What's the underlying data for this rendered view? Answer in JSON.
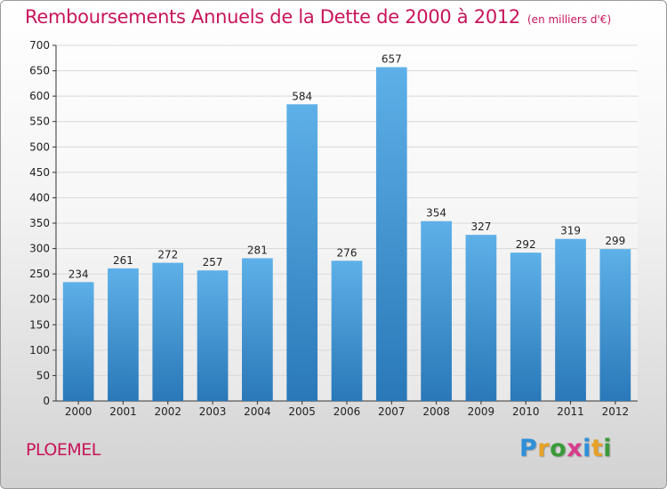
{
  "chart_data": {
    "type": "bar",
    "title": "Remboursements Annuels de la Dette de 2000 à 2012",
    "subtitle": "(en milliers d'€)",
    "categories": [
      "2000",
      "2001",
      "2002",
      "2003",
      "2004",
      "2005",
      "2006",
      "2007",
      "2008",
      "2009",
      "2010",
      "2011",
      "2012"
    ],
    "values": [
      234,
      261,
      272,
      257,
      281,
      584,
      276,
      657,
      354,
      327,
      292,
      319,
      299
    ],
    "ylim": [
      0,
      700
    ],
    "yticks": [
      0,
      50,
      100,
      150,
      200,
      250,
      300,
      350,
      400,
      450,
      500,
      550,
      600,
      650,
      700
    ],
    "xlabel": "",
    "ylabel": "",
    "grid": true,
    "colors": {
      "bar_top": "#5eb0e8",
      "bar_bottom": "#2a78b8",
      "grid": "#d8d8d8",
      "title": "#c8155a"
    }
  },
  "footer": {
    "city": "PLOEMEL",
    "logo": {
      "text": "Proxiti",
      "letters": [
        {
          "ch": "P",
          "color": "#2f8fd8"
        },
        {
          "ch": "r",
          "color": "#e6a126"
        },
        {
          "ch": "o",
          "color": "#3a9a3a"
        },
        {
          "ch": "x",
          "color": "#d83c8c"
        },
        {
          "ch": "i",
          "color": "#2f8fd8"
        },
        {
          "ch": "t",
          "color": "#e6a126"
        },
        {
          "ch": "i",
          "color": "#3a9a3a"
        }
      ]
    }
  }
}
